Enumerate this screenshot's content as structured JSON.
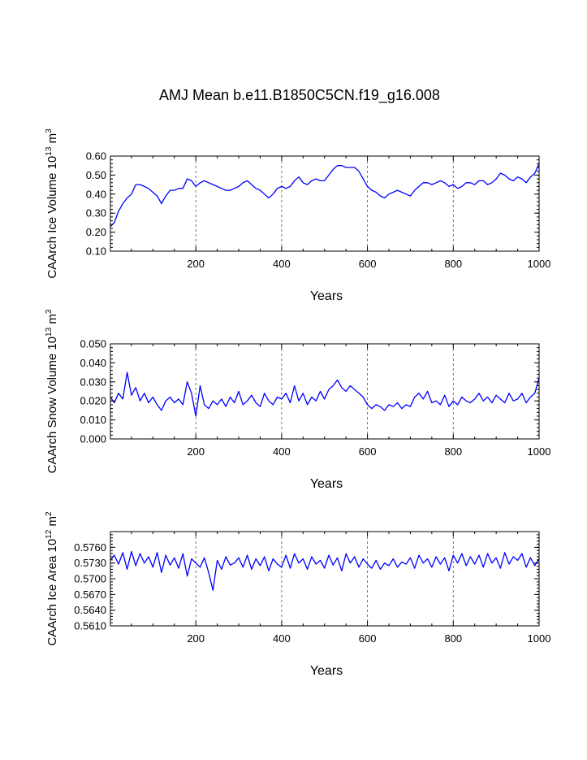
{
  "title": "AMJ Mean b.e11.B1850C5CN.f19_g16.008",
  "colors": {
    "line": "#0000ff",
    "frame": "#000000",
    "grid": "#555555"
  },
  "chart_data": [
    {
      "type": "line",
      "name": "ice-volume",
      "ylabel": {
        "main": "CAArch Ice Volume 10",
        "exp": "13",
        "unit": " m",
        "unit_exp": "3"
      },
      "xlabel": "Years",
      "xlim": [
        1,
        1000
      ],
      "ylim": [
        0.1,
        0.6
      ],
      "xticks": [
        200,
        400,
        600,
        800,
        1000
      ],
      "xtick_labels": [
        "200",
        "400",
        "600",
        "800",
        "1000"
      ],
      "yticks": [
        0.1,
        0.2,
        0.3,
        0.4,
        0.5,
        0.6
      ],
      "ytick_labels": [
        "0.10",
        "0.20",
        "0.30",
        "0.40",
        "0.50",
        "0.60"
      ],
      "grid": "vertical dashed at major x ticks",
      "series": [
        {
          "name": "ice volume",
          "x": [
            1,
            10,
            20,
            30,
            40,
            50,
            60,
            70,
            80,
            90,
            100,
            110,
            120,
            130,
            140,
            150,
            160,
            170,
            180,
            190,
            200,
            210,
            220,
            230,
            240,
            250,
            260,
            270,
            280,
            290,
            300,
            310,
            320,
            330,
            340,
            350,
            360,
            370,
            380,
            390,
            400,
            410,
            420,
            430,
            440,
            450,
            460,
            470,
            480,
            490,
            500,
            510,
            520,
            530,
            540,
            550,
            560,
            570,
            580,
            590,
            600,
            610,
            620,
            630,
            640,
            650,
            660,
            670,
            680,
            690,
            700,
            710,
            720,
            730,
            740,
            750,
            760,
            770,
            780,
            790,
            800,
            810,
            820,
            830,
            840,
            850,
            860,
            870,
            880,
            890,
            900,
            910,
            920,
            930,
            940,
            950,
            960,
            970,
            980,
            990,
            1000
          ],
          "y": [
            0.23,
            0.25,
            0.31,
            0.35,
            0.38,
            0.4,
            0.45,
            0.45,
            0.44,
            0.43,
            0.41,
            0.39,
            0.35,
            0.39,
            0.42,
            0.42,
            0.43,
            0.43,
            0.48,
            0.47,
            0.44,
            0.46,
            0.47,
            0.46,
            0.45,
            0.44,
            0.43,
            0.42,
            0.42,
            0.43,
            0.44,
            0.46,
            0.47,
            0.45,
            0.43,
            0.42,
            0.4,
            0.38,
            0.4,
            0.43,
            0.44,
            0.43,
            0.44,
            0.47,
            0.49,
            0.46,
            0.45,
            0.47,
            0.48,
            0.47,
            0.47,
            0.5,
            0.53,
            0.55,
            0.55,
            0.54,
            0.54,
            0.54,
            0.52,
            0.48,
            0.44,
            0.42,
            0.41,
            0.39,
            0.38,
            0.4,
            0.41,
            0.42,
            0.41,
            0.4,
            0.39,
            0.42,
            0.44,
            0.46,
            0.46,
            0.45,
            0.46,
            0.47,
            0.46,
            0.44,
            0.45,
            0.43,
            0.44,
            0.46,
            0.46,
            0.45,
            0.47,
            0.47,
            0.45,
            0.46,
            0.48,
            0.51,
            0.5,
            0.48,
            0.47,
            0.49,
            0.48,
            0.46,
            0.49,
            0.51,
            0.56
          ]
        }
      ]
    },
    {
      "type": "line",
      "name": "snow-volume",
      "ylabel": {
        "main": "CAArch Snow Volume 10",
        "exp": "13",
        "unit": " m",
        "unit_exp": "3"
      },
      "xlabel": "Years",
      "xlim": [
        1,
        1000
      ],
      "ylim": [
        0.0,
        0.05
      ],
      "xticks": [
        200,
        400,
        600,
        800,
        1000
      ],
      "xtick_labels": [
        "200",
        "400",
        "600",
        "800",
        "1000"
      ],
      "yticks": [
        0.0,
        0.01,
        0.02,
        0.03,
        0.04,
        0.05
      ],
      "ytick_labels": [
        "0.000",
        "0.010",
        "0.020",
        "0.030",
        "0.040",
        "0.050"
      ],
      "grid": "vertical dashed at major x ticks",
      "series": [
        {
          "name": "snow volume",
          "x": [
            1,
            10,
            20,
            30,
            40,
            50,
            60,
            70,
            80,
            90,
            100,
            110,
            120,
            130,
            140,
            150,
            160,
            170,
            180,
            190,
            200,
            210,
            220,
            230,
            240,
            250,
            260,
            270,
            280,
            290,
            300,
            310,
            320,
            330,
            340,
            350,
            360,
            370,
            380,
            390,
            400,
            410,
            420,
            430,
            440,
            450,
            460,
            470,
            480,
            490,
            500,
            510,
            520,
            530,
            540,
            550,
            560,
            570,
            580,
            590,
            600,
            610,
            620,
            630,
            640,
            650,
            660,
            670,
            680,
            690,
            700,
            710,
            720,
            730,
            740,
            750,
            760,
            770,
            780,
            790,
            800,
            810,
            820,
            830,
            840,
            850,
            860,
            870,
            880,
            890,
            900,
            910,
            920,
            930,
            940,
            950,
            960,
            970,
            980,
            990,
            1000
          ],
          "y": [
            0.022,
            0.019,
            0.024,
            0.021,
            0.035,
            0.023,
            0.027,
            0.02,
            0.024,
            0.019,
            0.022,
            0.018,
            0.015,
            0.02,
            0.022,
            0.019,
            0.021,
            0.018,
            0.03,
            0.024,
            0.012,
            0.028,
            0.018,
            0.016,
            0.02,
            0.018,
            0.021,
            0.017,
            0.022,
            0.019,
            0.025,
            0.018,
            0.02,
            0.023,
            0.019,
            0.017,
            0.024,
            0.02,
            0.018,
            0.022,
            0.021,
            0.024,
            0.019,
            0.028,
            0.02,
            0.024,
            0.018,
            0.022,
            0.02,
            0.025,
            0.021,
            0.026,
            0.028,
            0.031,
            0.027,
            0.025,
            0.028,
            0.026,
            0.024,
            0.022,
            0.018,
            0.016,
            0.018,
            0.017,
            0.015,
            0.018,
            0.017,
            0.019,
            0.016,
            0.018,
            0.017,
            0.022,
            0.024,
            0.021,
            0.025,
            0.019,
            0.02,
            0.018,
            0.023,
            0.017,
            0.02,
            0.018,
            0.022,
            0.02,
            0.019,
            0.021,
            0.024,
            0.02,
            0.022,
            0.019,
            0.023,
            0.021,
            0.019,
            0.024,
            0.02,
            0.021,
            0.024,
            0.019,
            0.022,
            0.024,
            0.032
          ]
        }
      ]
    },
    {
      "type": "line",
      "name": "ice-area",
      "ylabel": {
        "main": "CAArch Ice Area 10",
        "exp": "12",
        "unit": " m",
        "unit_exp": "2"
      },
      "xlabel": "Years",
      "xlim": [
        1,
        1000
      ],
      "ylim": [
        0.561,
        0.579
      ],
      "xticks": [
        200,
        400,
        600,
        800,
        1000
      ],
      "xtick_labels": [
        "200",
        "400",
        "600",
        "800",
        "1000"
      ],
      "yticks": [
        0.561,
        0.564,
        0.567,
        0.57,
        0.573,
        0.576
      ],
      "ytick_labels": [
        "0.5610",
        "0.5640",
        "0.5670",
        "0.5700",
        "0.5730",
        "0.5760"
      ],
      "grid": "vertical dashed at major x ticks",
      "series": [
        {
          "name": "ice area",
          "x": [
            1,
            10,
            20,
            30,
            40,
            50,
            60,
            70,
            80,
            90,
            100,
            110,
            120,
            130,
            140,
            150,
            160,
            170,
            180,
            190,
            200,
            210,
            220,
            230,
            240,
            250,
            260,
            270,
            280,
            290,
            300,
            310,
            320,
            330,
            340,
            350,
            360,
            370,
            380,
            390,
            400,
            410,
            420,
            430,
            440,
            450,
            460,
            470,
            480,
            490,
            500,
            510,
            520,
            530,
            540,
            550,
            560,
            570,
            580,
            590,
            600,
            610,
            620,
            630,
            640,
            650,
            660,
            670,
            680,
            690,
            700,
            710,
            720,
            730,
            740,
            750,
            760,
            770,
            780,
            790,
            800,
            810,
            820,
            830,
            840,
            850,
            860,
            870,
            880,
            890,
            900,
            910,
            920,
            930,
            940,
            950,
            960,
            970,
            980,
            990,
            1000
          ],
          "y": [
            0.5735,
            0.5745,
            0.5728,
            0.575,
            0.5718,
            0.5752,
            0.5725,
            0.5748,
            0.573,
            0.5742,
            0.5722,
            0.575,
            0.5712,
            0.5745,
            0.5726,
            0.574,
            0.572,
            0.5748,
            0.5705,
            0.5738,
            0.573,
            0.5722,
            0.574,
            0.5712,
            0.5678,
            0.5735,
            0.5718,
            0.5742,
            0.5726,
            0.573,
            0.574,
            0.5722,
            0.5745,
            0.5718,
            0.5738,
            0.5725,
            0.5742,
            0.5715,
            0.5738,
            0.5728,
            0.5722,
            0.5745,
            0.572,
            0.5748,
            0.573,
            0.5738,
            0.5718,
            0.5742,
            0.5728,
            0.5735,
            0.572,
            0.5745,
            0.5726,
            0.574,
            0.5715,
            0.5748,
            0.573,
            0.5742,
            0.5722,
            0.5738,
            0.5728,
            0.572,
            0.5735,
            0.5718,
            0.573,
            0.5725,
            0.5738,
            0.5722,
            0.5732,
            0.5728,
            0.574,
            0.572,
            0.5745,
            0.573,
            0.5738,
            0.5722,
            0.5742,
            0.5728,
            0.574,
            0.5715,
            0.5745,
            0.573,
            0.5748,
            0.5725,
            0.5742,
            0.5728,
            0.5745,
            0.5722,
            0.5748,
            0.573,
            0.574,
            0.572,
            0.575,
            0.5728,
            0.5742,
            0.5735,
            0.5748,
            0.5722,
            0.574,
            0.5725,
            0.5738
          ]
        }
      ]
    }
  ]
}
